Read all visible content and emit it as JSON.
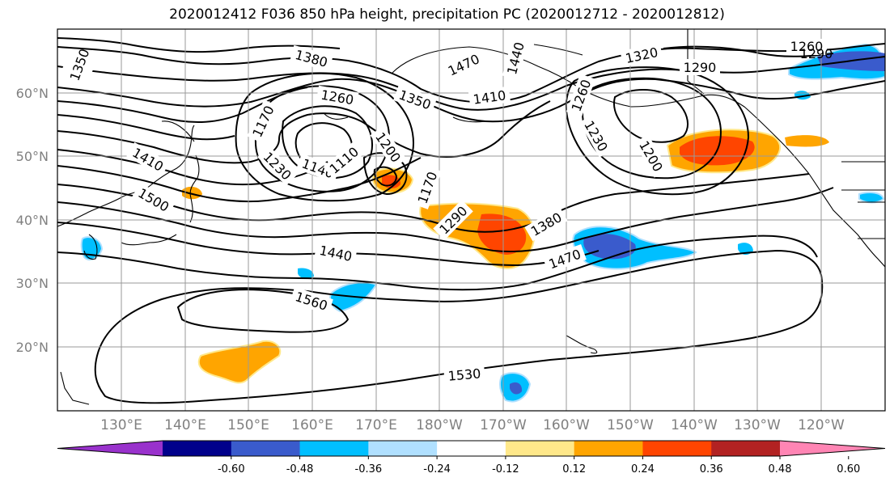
{
  "title": "2020012412 F036 850 hPa height, precipitation PC (2020012712 - 2020012812)",
  "lat_labels": [
    "60°N",
    "50°N",
    "40°N",
    "30°N",
    "20°N"
  ],
  "lon_labels": [
    "130°E",
    "140°E",
    "150°E",
    "160°E",
    "170°E",
    "180°W",
    "170°W",
    "160°W",
    "150°W",
    "140°W",
    "130°W",
    "120°W"
  ],
  "contour_labels": [
    "1350",
    "1380",
    "1470",
    "1440",
    "1320",
    "1260",
    "1290",
    "1290",
    "1260",
    "1170",
    "1410",
    "1350",
    "1260",
    "1230",
    "1200",
    "1410",
    "1230",
    "1140",
    "1110",
    "1200",
    "1170",
    "1500",
    "1290",
    "1380",
    "1440",
    "1470",
    "1560",
    "1530"
  ],
  "colorbar": {
    "ticks": [
      "-0.60",
      "-0.48",
      "-0.36",
      "-0.24",
      "-0.12",
      "0.12",
      "0.24",
      "0.36",
      "0.48",
      "0.60"
    ],
    "colors": [
      "#9932CC",
      "#00008B",
      "#3A5BCC",
      "#00BFFF",
      "#B0E0FF",
      "#FFFFFF",
      "#FFE88A",
      "#FFA500",
      "#FF4500",
      "#B22222",
      "#FF85B4"
    ]
  }
}
